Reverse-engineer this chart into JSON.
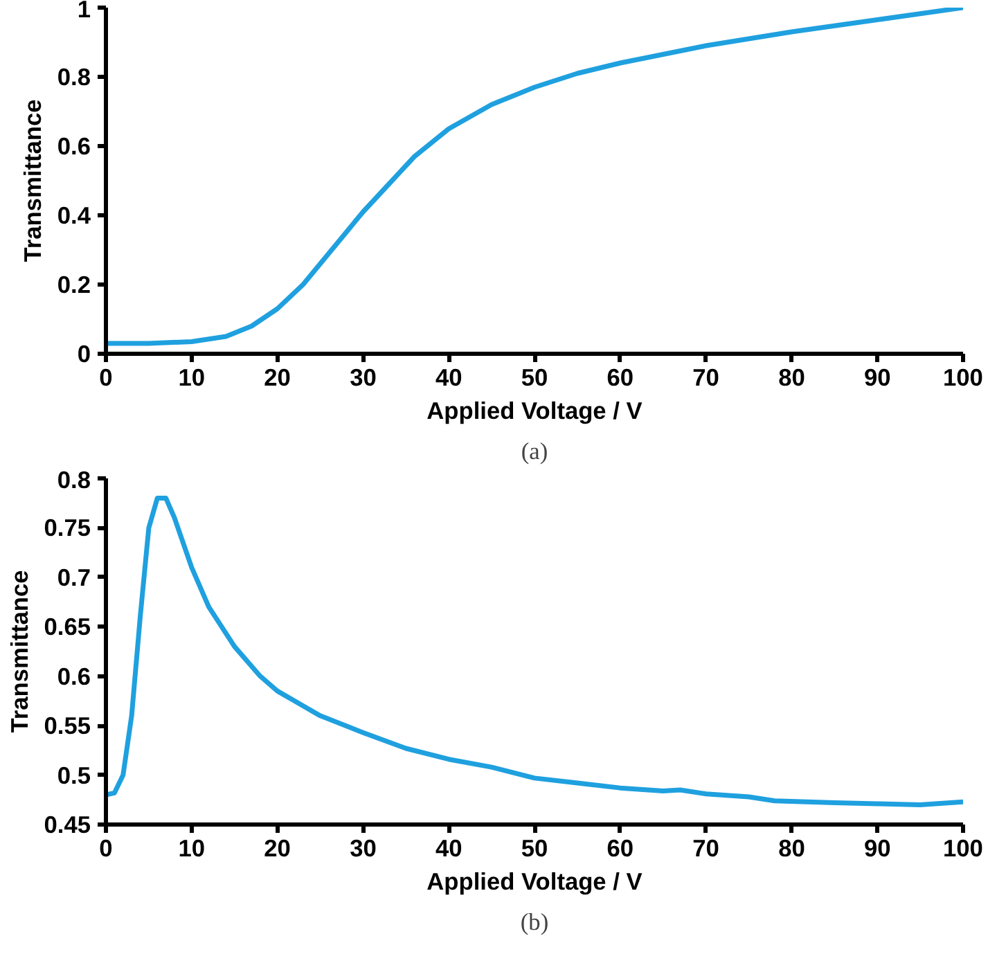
{
  "chart_data": [
    {
      "type": "line",
      "xlabel": "Applied Voltage / V",
      "ylabel": "Transmittance",
      "annotations": [
        "(a)"
      ],
      "xlim": [
        0,
        100
      ],
      "ylim": [
        0,
        1
      ],
      "xticks": [
        0,
        10,
        20,
        30,
        40,
        50,
        60,
        70,
        80,
        90,
        100
      ],
      "yticks": [
        0,
        0.2,
        0.4,
        0.6,
        0.8,
        1
      ],
      "grid": false,
      "series": [
        {
          "color": "#1fa0df",
          "x": [
            0,
            5,
            10,
            14,
            17,
            20,
            23,
            26,
            30,
            33,
            36,
            40,
            45,
            50,
            55,
            60,
            70,
            80,
            90,
            100
          ],
          "values": [
            0.03,
            0.03,
            0.035,
            0.05,
            0.08,
            0.13,
            0.2,
            0.29,
            0.41,
            0.49,
            0.57,
            0.65,
            0.72,
            0.77,
            0.81,
            0.84,
            0.89,
            0.93,
            0.965,
            1.0
          ]
        }
      ]
    },
    {
      "type": "line",
      "xlabel": "Applied Voltage / V",
      "ylabel": "Transmittance",
      "annotations": [
        "(b)"
      ],
      "xlim": [
        0,
        100
      ],
      "ylim": [
        0.45,
        0.8
      ],
      "xticks": [
        0,
        10,
        20,
        30,
        40,
        50,
        60,
        70,
        80,
        90,
        100
      ],
      "yticks": [
        0.45,
        0.5,
        0.55,
        0.6,
        0.65,
        0.7,
        0.75,
        0.8
      ],
      "grid": false,
      "series": [
        {
          "color": "#1fa0df",
          "x": [
            0,
            1,
            2,
            3,
            4,
            5,
            6,
            7,
            8,
            10,
            12,
            15,
            18,
            20,
            25,
            30,
            35,
            40,
            45,
            50,
            55,
            60,
            65,
            67,
            70,
            75,
            78,
            85,
            90,
            95,
            100
          ],
          "values": [
            0.48,
            0.482,
            0.5,
            0.56,
            0.66,
            0.75,
            0.78,
            0.78,
            0.76,
            0.71,
            0.67,
            0.63,
            0.6,
            0.585,
            0.56,
            0.543,
            0.527,
            0.516,
            0.508,
            0.497,
            0.492,
            0.487,
            0.484,
            0.485,
            0.481,
            0.478,
            0.474,
            0.472,
            0.471,
            0.47,
            0.473
          ]
        }
      ]
    }
  ]
}
